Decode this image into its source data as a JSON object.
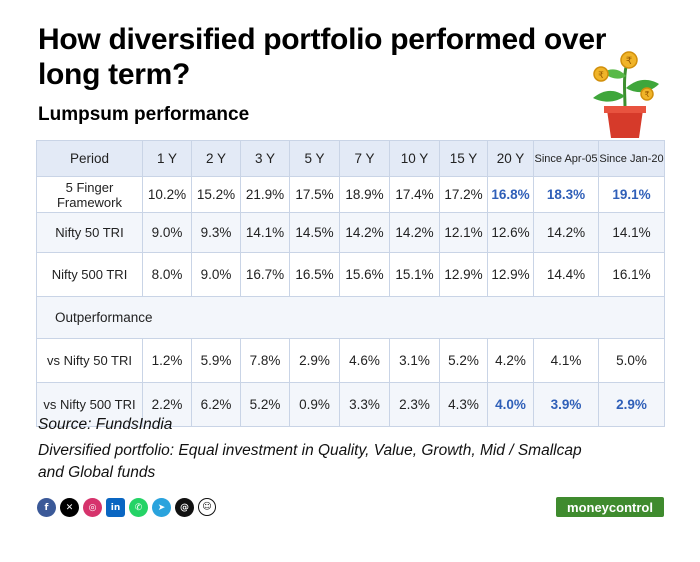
{
  "title": "How diversified portfolio performed over long term?",
  "subtitle": "Lumpsum performance",
  "table": {
    "headers": [
      "Period",
      "1 Y",
      "2 Y",
      "3 Y",
      "5 Y",
      "7 Y",
      "10 Y",
      "15 Y",
      "20 Y",
      "Since Apr-05",
      "Since Jan-20"
    ],
    "rows": [
      {
        "label": "5 Finger Framework",
        "values": [
          "10.2%",
          "15.2%",
          "21.9%",
          "17.5%",
          "18.9%",
          "17.4%",
          "17.2%",
          "16.8%",
          "18.3%",
          "19.1%"
        ]
      },
      {
        "label": "Nifty 50 TRI",
        "values": [
          "9.0%",
          "9.3%",
          "14.1%",
          "14.5%",
          "14.2%",
          "14.2%",
          "12.1%",
          "12.6%",
          "14.2%",
          "14.1%"
        ]
      },
      {
        "label": "Nifty 500 TRI",
        "values": [
          "8.0%",
          "9.0%",
          "16.7%",
          "16.5%",
          "15.6%",
          "15.1%",
          "12.9%",
          "12.9%",
          "14.4%",
          "16.1%"
        ]
      }
    ],
    "section_label": "Outperformance",
    "out_rows": [
      {
        "label": "vs Nifty 50 TRI",
        "values": [
          "1.2%",
          "5.9%",
          "7.8%",
          "2.9%",
          "4.6%",
          "3.1%",
          "5.2%",
          "4.2%",
          "4.1%",
          "5.0%"
        ]
      },
      {
        "label": "vs Nifty 500 TRI",
        "values": [
          "2.2%",
          "6.2%",
          "5.2%",
          "0.9%",
          "3.3%",
          "2.3%",
          "4.3%",
          "4.0%",
          "3.9%",
          "2.9%"
        ]
      }
    ],
    "highlight_color": "#2f5fb8"
  },
  "source": "Source: FundsIndia",
  "note": "Diversified portfolio: Equal investment in Quality, Value, Growth, Mid / Smallcap and Global funds",
  "social_icons": [
    "facebook-icon",
    "x-icon",
    "instagram-icon",
    "linkedin-icon",
    "whatsapp-icon",
    "telegram-icon",
    "threads-icon",
    "snapchat-icon"
  ],
  "logo": "moneycontrol"
}
